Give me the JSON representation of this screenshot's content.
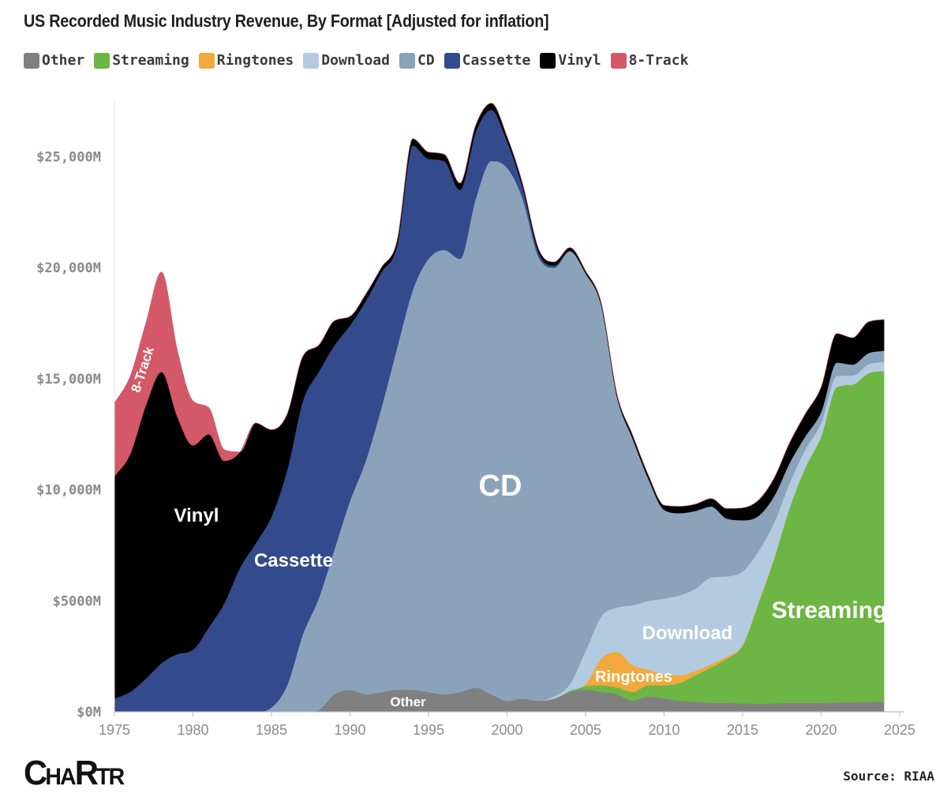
{
  "header": {
    "title": "US Recorded Music Industry Revenue, By Format [Adjusted for inflation]"
  },
  "footer": {
    "logo_big_c": "C",
    "logo_ha": "HA",
    "logo_r": "R",
    "logo_t": "T",
    "logo_r2": "R",
    "source": "Source: RIAA"
  },
  "chart_data": {
    "type": "area",
    "stacked": true,
    "title": "US Recorded Music Industry Revenue, By Format [Adjusted for inflation]",
    "xlabel": "",
    "ylabel": "",
    "xlim": [
      1975,
      2025
    ],
    "ylim": [
      0,
      27500
    ],
    "grid": false,
    "legend_position": "top-left",
    "x_ticks": [
      1975,
      1980,
      1985,
      1990,
      1995,
      2000,
      2005,
      2010,
      2015,
      2020,
      2025
    ],
    "x_tick_labels": [
      "1975",
      "1980",
      "1985",
      "1990",
      "1995",
      "2000",
      "2005",
      "2010",
      "2015",
      "2020",
      "2025"
    ],
    "y_ticks": [
      0,
      5000,
      10000,
      15000,
      20000,
      25000
    ],
    "y_tick_labels": [
      "$0M",
      "$5000M",
      "$10,000M",
      "$15,000M",
      "$20,000M",
      "$25,000M"
    ],
    "x": [
      1975,
      1976,
      1977,
      1978,
      1979,
      1980,
      1981,
      1982,
      1983,
      1984,
      1985,
      1986,
      1987,
      1988,
      1989,
      1990,
      1991,
      1992,
      1993,
      1994,
      1995,
      1996,
      1997,
      1998,
      1999,
      2000,
      2001,
      2002,
      2003,
      2004,
      2005,
      2006,
      2007,
      2008,
      2009,
      2010,
      2011,
      2012,
      2013,
      2014,
      2015,
      2016,
      2017,
      2018,
      2019,
      2020,
      2021,
      2022,
      2023,
      2024
    ],
    "series": [
      {
        "name": "Other",
        "color": "#808080",
        "label": "Other",
        "values": [
          0,
          0,
          0,
          0,
          0,
          0,
          0,
          0,
          0,
          0,
          0,
          0,
          0,
          100,
          800,
          1000,
          800,
          900,
          1000,
          1000,
          900,
          800,
          900,
          1100,
          800,
          500,
          600,
          500,
          600,
          900,
          1000,
          900,
          800,
          500,
          700,
          600,
          500,
          450,
          400,
          400,
          380,
          370,
          380,
          400,
          400,
          400,
          420,
          430,
          440,
          450
        ]
      },
      {
        "name": "Streaming",
        "color": "#6db544",
        "label": "Streaming",
        "values": [
          0,
          0,
          0,
          0,
          0,
          0,
          0,
          0,
          0,
          0,
          0,
          0,
          0,
          0,
          0,
          0,
          0,
          0,
          0,
          0,
          0,
          0,
          0,
          0,
          0,
          0,
          0,
          0,
          0,
          50,
          150,
          300,
          300,
          400,
          500,
          600,
          800,
          1200,
          1600,
          2000,
          2600,
          4500,
          6500,
          8800,
          10600,
          12000,
          14200,
          14300,
          14800,
          14900
        ]
      },
      {
        "name": "Ringtones",
        "color": "#f2a93b",
        "label": "Ringtones",
        "values": [
          0,
          0,
          0,
          0,
          0,
          0,
          0,
          0,
          0,
          0,
          0,
          0,
          0,
          0,
          0,
          0,
          0,
          0,
          0,
          0,
          0,
          0,
          0,
          0,
          0,
          0,
          0,
          0,
          0,
          0,
          100,
          1200,
          1600,
          1200,
          700,
          500,
          350,
          200,
          150,
          100,
          50,
          50,
          30,
          20,
          20,
          10,
          10,
          10,
          10,
          10
        ]
      },
      {
        "name": "Download",
        "color": "#b3cbe0",
        "label": "Download",
        "values": [
          0,
          0,
          0,
          0,
          0,
          0,
          0,
          0,
          0,
          0,
          0,
          0,
          0,
          0,
          0,
          0,
          0,
          0,
          0,
          0,
          0,
          0,
          0,
          0,
          0,
          0,
          0,
          0,
          100,
          300,
          1500,
          1900,
          2000,
          2700,
          3100,
          3400,
          3600,
          3700,
          3900,
          3600,
          3300,
          2300,
          1600,
          1100,
          800,
          600,
          500,
          400,
          400,
          400
        ]
      },
      {
        "name": "CD",
        "color": "#8aa2ba",
        "label": "CD",
        "values": [
          0,
          0,
          0,
          0,
          0,
          0,
          0,
          0,
          0,
          0,
          200,
          1200,
          3500,
          5000,
          6500,
          8500,
          10500,
          12800,
          15400,
          18000,
          19500,
          20000,
          19500,
          22000,
          24000,
          24000,
          22500,
          20000,
          19300,
          19500,
          17000,
          14000,
          9500,
          7500,
          5500,
          4000,
          3700,
          3500,
          3200,
          2600,
          2300,
          1600,
          1200,
          900,
          600,
          500,
          600,
          500,
          500,
          500
        ]
      },
      {
        "name": "Cassette",
        "color": "#334a8c",
        "label": "Cassette",
        "values": [
          600,
          900,
          1500,
          2200,
          2600,
          2800,
          3800,
          4900,
          6500,
          7600,
          8600,
          9700,
          10500,
          10200,
          9200,
          7900,
          7200,
          6100,
          4600,
          6500,
          4500,
          4000,
          3100,
          3000,
          2300,
          1200,
          500,
          200,
          100,
          0,
          0,
          0,
          0,
          0,
          0,
          0,
          0,
          0,
          0,
          0,
          0,
          0,
          0,
          0,
          0,
          0,
          0,
          0,
          0,
          0
        ]
      },
      {
        "name": "Vinyl",
        "color": "#000000",
        "label": "Vinyl",
        "values": [
          10000,
          10700,
          12300,
          13100,
          10700,
          9200,
          8700,
          6400,
          5200,
          5400,
          3900,
          2500,
          2000,
          1200,
          1100,
          400,
          300,
          200,
          200,
          300,
          300,
          300,
          300,
          300,
          300,
          200,
          150,
          150,
          150,
          150,
          100,
          100,
          100,
          150,
          150,
          200,
          300,
          300,
          350,
          450,
          550,
          700,
          800,
          900,
          1000,
          1100,
          1300,
          1200,
          1400,
          1400
        ]
      },
      {
        "name": "8-Track",
        "color": "#d35968",
        "label": "8-Track",
        "values": [
          3300,
          3500,
          3700,
          4500,
          3000,
          2000,
          1200,
          500,
          0,
          0,
          0,
          0,
          0,
          0,
          0,
          0,
          0,
          0,
          0,
          0,
          0,
          0,
          0,
          0,
          0,
          0,
          0,
          0,
          0,
          0,
          0,
          0,
          0,
          0,
          0,
          0,
          0,
          0,
          0,
          0,
          0,
          0,
          0,
          0,
          0,
          0,
          0,
          0,
          0,
          0
        ]
      }
    ]
  }
}
